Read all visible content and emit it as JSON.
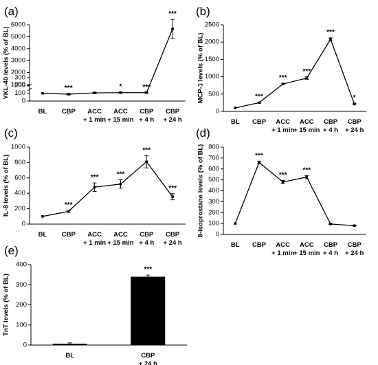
{
  "chart_data": [
    {
      "panel_label": "(a)",
      "type": "line",
      "ylabel": "YKL-40 levels (% of  BL)",
      "categories": [
        [
          "BL"
        ],
        [
          "CBP"
        ],
        [
          "ACC",
          "+ 1 min"
        ],
        [
          "ACC",
          "+ 15 min"
        ],
        [
          "CBP",
          "+ 4 h"
        ],
        [
          "CBP",
          "+ 24 h"
        ]
      ],
      "values": [
        100,
        88,
        105,
        108,
        108,
        5650
      ],
      "errors": [
        0,
        8,
        8,
        8,
        8,
        800
      ],
      "significance": [
        "",
        "***",
        "",
        "*",
        "***",
        "***"
      ],
      "y_axis_break": true,
      "lower_segment": {
        "ylim": [
          0,
          300
        ],
        "ticks": [
          0,
          100,
          200,
          300
        ]
      },
      "upper_segment": {
        "ylim": [
          1000,
          6000
        ],
        "ticks": [
          1000,
          2000,
          3000,
          4000,
          5000,
          6000
        ]
      }
    },
    {
      "panel_label": "(b)",
      "type": "line",
      "ylabel": "MCP-1 levels (% of  BL)",
      "categories": [
        [
          "BL"
        ],
        [
          "CBP"
        ],
        [
          "ACC",
          "+ 1 min"
        ],
        [
          "ACC",
          "+ 15 min"
        ],
        [
          "CBP",
          "+ 4 h"
        ],
        [
          "CBP",
          "+ 24 h"
        ]
      ],
      "values": [
        100,
        250,
        790,
        960,
        2080,
        210
      ],
      "errors": [
        0,
        15,
        25,
        35,
        45,
        25
      ],
      "significance": [
        "",
        "***",
        "***",
        "***",
        "***",
        "*"
      ],
      "ylim": [
        0,
        2500
      ],
      "ticks": [
        0,
        500,
        1000,
        1500,
        2000,
        2500
      ]
    },
    {
      "panel_label": "(c)",
      "type": "line",
      "ylabel": "IL-8 levels (% of BL)",
      "categories": [
        [
          "BL"
        ],
        [
          "CBP"
        ],
        [
          "ACC",
          "+ 1 min"
        ],
        [
          "ACC",
          "+ 15 min"
        ],
        [
          "CBP",
          "+ 4 h"
        ],
        [
          "CBP",
          "+ 24 h"
        ]
      ],
      "values": [
        100,
        165,
        480,
        520,
        810,
        355
      ],
      "errors": [
        0,
        12,
        55,
        55,
        80,
        40
      ],
      "significance": [
        "",
        "***",
        "***",
        "***",
        "***",
        "***"
      ],
      "ylim": [
        0,
        1000
      ],
      "ticks": [
        0,
        200,
        400,
        600,
        800,
        1000
      ]
    },
    {
      "panel_label": "(d)",
      "type": "line",
      "ylabel": "8-isoprostane levels  (% of BL)",
      "categories": [
        [
          "BL"
        ],
        [
          "CBP"
        ],
        [
          "ACC",
          "+ 1 min"
        ],
        [
          "ACC",
          "+ 15 min"
        ],
        [
          "CBP",
          "+ 4 h"
        ],
        [
          "CBP",
          "+ 24 h"
        ]
      ],
      "values": [
        100,
        660,
        480,
        525,
        95,
        80
      ],
      "errors": [
        0,
        12,
        15,
        15,
        3,
        3
      ],
      "significance": [
        "",
        "***",
        "***",
        "***",
        "",
        ""
      ],
      "ylim": [
        0,
        800
      ],
      "ticks": [
        0,
        100,
        200,
        300,
        400,
        500,
        600,
        700,
        800
      ]
    },
    {
      "panel_label": "(e)",
      "type": "bar",
      "ylabel": "TnT levels (% of BL)",
      "categories": [
        [
          "BL"
        ],
        [
          "CBP",
          "+ 24 h"
        ]
      ],
      "values": [
        7,
        340
      ],
      "errors": [
        4,
        8
      ],
      "significance": [
        "",
        "***"
      ],
      "ylim": [
        0,
        400
      ],
      "ticks": [
        0,
        100,
        200,
        300,
        400
      ],
      "bar_color": "#000000"
    }
  ]
}
